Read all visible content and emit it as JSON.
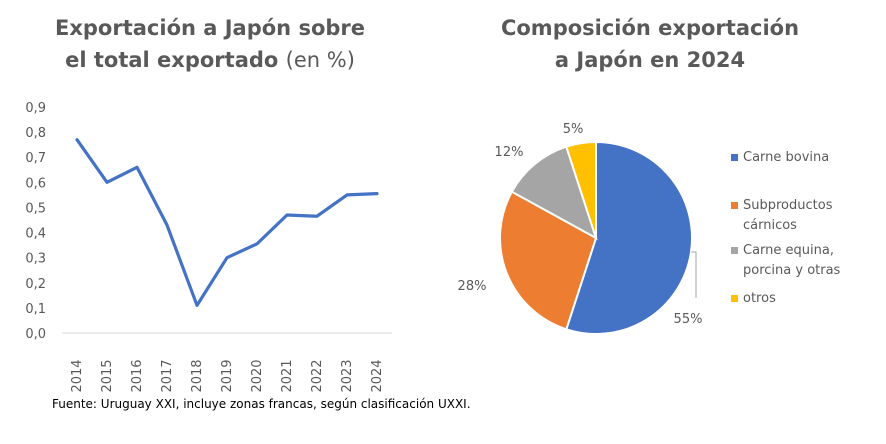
{
  "source_note": "Fuente: Uruguay XXI, incluye zonas francas, según clasificación UXXI.",
  "chart_data": [
    {
      "type": "line",
      "title_line1": "Exportación a Japón sobre",
      "title_line2": "el total exportado",
      "title_suffix": "(en %)",
      "x": [
        "2014",
        "2015",
        "2016",
        "2017",
        "2018",
        "2019",
        "2020",
        "2021",
        "2022",
        "2023",
        "2024"
      ],
      "series": [
        {
          "values": [
            0.77,
            0.6,
            0.66,
            0.43,
            0.11,
            0.3,
            0.355,
            0.47,
            0.465,
            0.55,
            0.555
          ]
        }
      ],
      "y_ticks": [
        "0,0",
        "0,1",
        "0,2",
        "0,3",
        "0,4",
        "0,5",
        "0,6",
        "0,7",
        "0,8",
        "0,9"
      ],
      "ylim": [
        0,
        0.9
      ],
      "grid": false,
      "line_color": "#4472C4"
    },
    {
      "type": "pie",
      "title_line1": "Composición exportación",
      "title_line2": "a Japón en 2024",
      "slices": [
        {
          "label": "Carne bovina",
          "value": 55,
          "display": "55%",
          "color": "#4472C4"
        },
        {
          "label": "Subproductos cárnicos",
          "value": 28,
          "display": "28%",
          "color": "#ED7D31"
        },
        {
          "label": "Carne equina, porcina y otras",
          "value": 12,
          "display": "12%",
          "color": "#A5A5A5"
        },
        {
          "label": "otros",
          "value": 5,
          "display": "5%",
          "color": "#FFC000"
        }
      ],
      "legend_position": "right"
    }
  ]
}
